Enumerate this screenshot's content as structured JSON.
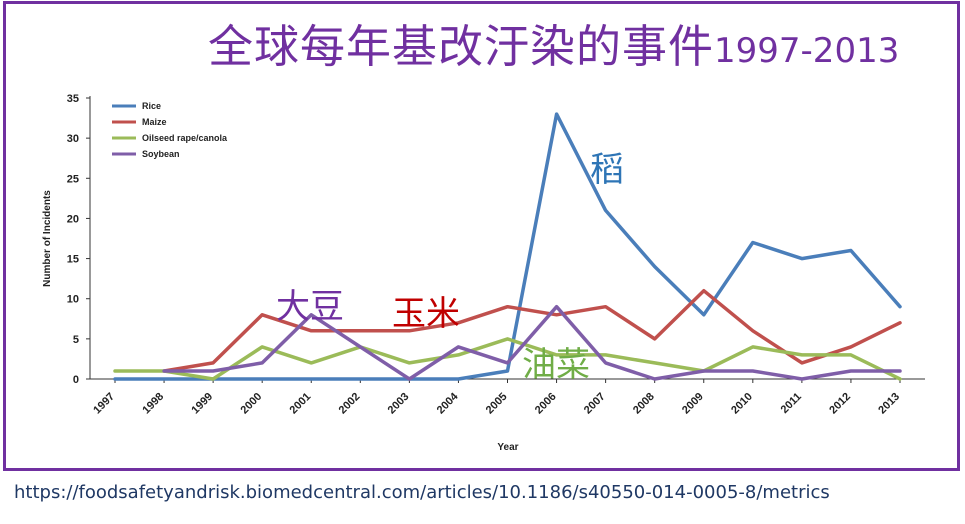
{
  "title": {
    "main": "全球每年基改汙染的事件",
    "years": "1997-2013"
  },
  "annotations": {
    "rice": "稻",
    "maize": "玉米",
    "oilseed": "油菜",
    "soybean": "大豆"
  },
  "source_url": "https://foodsafetyandrisk.biomedcentral.com/articles/10.1186/s40550-014-0005-8/metrics",
  "colors": {
    "frame": "#7030a0",
    "title": "#7030a0"
  },
  "chart_data": {
    "type": "line",
    "xlabel": "Year",
    "ylabel": "Number of Incidents",
    "ylim": [
      0,
      35
    ],
    "yticks": [
      0,
      5,
      10,
      15,
      20,
      25,
      30,
      35
    ],
    "x": [
      "1997",
      "1998",
      "1999",
      "2000",
      "2001",
      "2002",
      "2003",
      "2004",
      "2005",
      "2006",
      "2007",
      "2008",
      "2009",
      "2010",
      "2011",
      "2012",
      "2013"
    ],
    "legend_position": "top-left",
    "grid": false,
    "series": [
      {
        "name": "Rice",
        "color": "#4a7eba",
        "values": [
          0,
          0,
          0,
          0,
          0,
          0,
          0,
          0,
          1,
          33,
          21,
          14,
          8,
          17,
          15,
          16,
          9
        ]
      },
      {
        "name": "Maize",
        "color": "#c0504d",
        "values": [
          null,
          1,
          2,
          8,
          6,
          6,
          6,
          7,
          9,
          8,
          9,
          5,
          11,
          6,
          2,
          4,
          7
        ]
      },
      {
        "name": "Oilseed rape/canola",
        "color": "#9bbb59",
        "values": [
          1,
          1,
          0,
          4,
          2,
          4,
          2,
          3,
          5,
          3,
          3,
          2,
          1,
          4,
          3,
          3,
          0
        ]
      },
      {
        "name": "Soybean",
        "color": "#7f5ea8",
        "values": [
          null,
          1,
          1,
          2,
          8,
          4,
          0,
          4,
          2,
          9,
          2,
          0,
          1,
          1,
          0,
          1,
          1
        ]
      }
    ]
  }
}
